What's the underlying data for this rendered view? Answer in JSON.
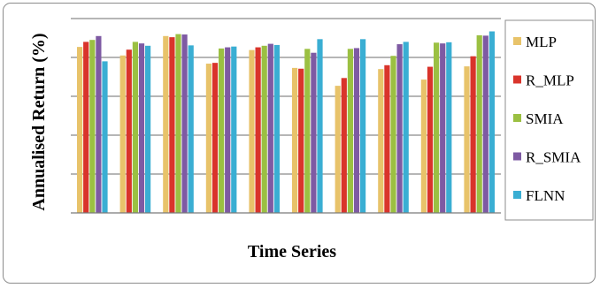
{
  "chart_data": {
    "type": "bar",
    "ylabel": "Annualised Return (%)",
    "xlabel": "Time Series",
    "title": "",
    "grid": true,
    "legend_position": "right",
    "ylim": [
      0,
      5
    ],
    "categories": [
      "",
      "",
      "",
      "",
      "",
      "",
      "",
      "",
      "",
      ""
    ],
    "series": [
      {
        "name": "MLP",
        "color": "#e8c36a",
        "values": [
          4.27,
          4.05,
          4.55,
          3.84,
          4.19,
          3.73,
          3.27,
          3.7,
          3.43,
          3.77
        ]
      },
      {
        "name": "R_MLP",
        "color": "#d9342b",
        "values": [
          4.4,
          4.2,
          4.52,
          3.86,
          4.26,
          3.71,
          3.47,
          3.8,
          3.76,
          4.03
        ]
      },
      {
        "name": "SMIA",
        "color": "#9bc042",
        "values": [
          4.45,
          4.4,
          4.6,
          4.23,
          4.3,
          4.22,
          4.22,
          4.04,
          4.38,
          4.57
        ]
      },
      {
        "name": "R_SMIA",
        "color": "#7e5aa3",
        "values": [
          4.55,
          4.36,
          4.59,
          4.26,
          4.35,
          4.12,
          4.24,
          4.34,
          4.36,
          4.56
        ]
      },
      {
        "name": "FLNN",
        "color": "#3aaed3",
        "values": [
          3.9,
          4.3,
          4.31,
          4.28,
          4.32,
          4.47,
          4.47,
          4.4,
          4.39,
          4.67
        ]
      }
    ]
  }
}
